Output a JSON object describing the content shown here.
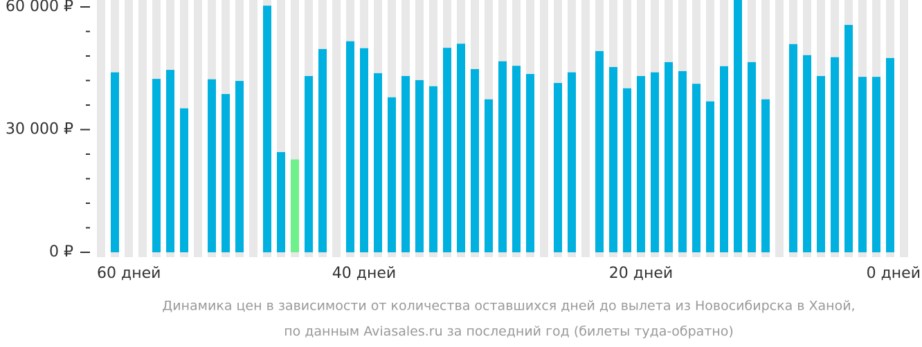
{
  "chart_data": {
    "type": "bar",
    "categories": [
      "60 дней",
      null,
      null,
      null,
      null,
      null,
      null,
      null,
      null,
      null,
      null,
      null,
      null,
      null,
      null,
      null,
      null,
      null,
      null,
      "40 дней",
      null,
      null,
      null,
      null,
      null,
      null,
      null,
      null,
      null,
      null,
      null,
      null,
      null,
      null,
      null,
      null,
      null,
      null,
      null,
      "20 дней",
      null,
      null,
      null,
      null,
      null,
      null,
      null,
      null,
      null,
      null,
      null,
      null,
      null,
      null,
      null,
      null,
      null,
      null,
      "0 дней"
    ],
    "values": [
      null,
      44000,
      null,
      null,
      42400,
      44600,
      35200,
      null,
      42300,
      38700,
      41900,
      null,
      60300,
      24500,
      22700,
      43100,
      49700,
      null,
      51600,
      49900,
      43800,
      37900,
      43100,
      42100,
      40600,
      50000,
      51000,
      44800,
      37400,
      46700,
      45600,
      43600,
      null,
      41400,
      44000,
      null,
      49200,
      45300,
      40100,
      43100,
      44000,
      46500,
      44300,
      41200,
      36900,
      45500,
      61700,
      46500,
      37400,
      null,
      50900,
      48200,
      43100,
      47700,
      55600,
      42900,
      42900,
      47500,
      null
    ],
    "color": "#00b0de",
    "highlight": {
      "index": 14,
      "color": "#6ef08a"
    },
    "ylim": [
      0,
      60000
    ],
    "yticks": [
      {
        "value": 0,
        "label": "0 ₽"
      },
      {
        "value": 30000,
        "label": "30 000 ₽"
      },
      {
        "value": 60000,
        "label": "60 000 ₽"
      }
    ],
    "minor_yticks": [
      6000,
      12000,
      18000,
      24000,
      36000,
      42000,
      48000,
      54000
    ],
    "caption": [
      "Динамика цен в зависимости от количества оставшихся дней до вылета из Новосибирска в Ханой,",
      "по данным Aviasales.ru за последний год (билеты туда-обратно)"
    ]
  }
}
